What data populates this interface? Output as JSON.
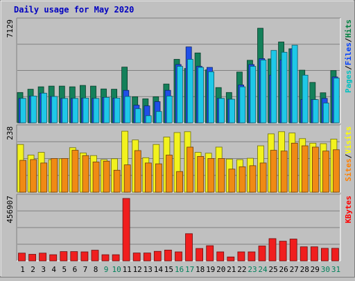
{
  "chart_data": {
    "type": "bar",
    "title": "Daily usage for May 2020",
    "categories": [
      "1",
      "2",
      "3",
      "4",
      "5",
      "6",
      "7",
      "8",
      "9",
      "10",
      "11",
      "12",
      "13",
      "14",
      "15",
      "16",
      "17",
      "18",
      "19",
      "20",
      "21",
      "22",
      "23",
      "24",
      "25",
      "26",
      "27",
      "28",
      "29",
      "30",
      "31"
    ],
    "weekend_days": [
      "9",
      "10",
      "16",
      "17",
      "23",
      "24",
      "30",
      "31"
    ],
    "panels": [
      {
        "id": "hits",
        "ymax_label": "7129",
        "ymax": 7129,
        "grid": true,
        "legend": [
          {
            "name": "Pages",
            "color": "#00c0c0"
          },
          {
            "name": "Files",
            "color": "#0040ff"
          },
          {
            "name": "Hits",
            "color": "#008040"
          }
        ],
        "series": [
          {
            "name": "Hits",
            "color": "#14805a",
            "values": [
              2150,
              2380,
              2550,
              2600,
              2600,
              2550,
              2650,
              2600,
              2400,
              2380,
              3950,
              1850,
              1700,
              1850,
              2750,
              4500,
              3850,
              4950,
              3750,
              2500,
              2150,
              3600,
              4430,
              6700,
              4530,
              5730,
              5250,
              3730,
              2860,
              2130,
              3700
            ]
          },
          {
            "name": "Files",
            "color": "#1f4fe8",
            "values": [
              1730,
              1900,
              2100,
              1870,
              1730,
              1730,
              1750,
              1730,
              1800,
              1750,
              2300,
              1250,
              1200,
              1500,
              2300,
              4130,
              5380,
              4000,
              3930,
              1730,
              1670,
              2680,
              4130,
              4550,
              3380,
              4450,
              5230,
              1650,
              1650,
              1730,
              3250
            ]
          },
          {
            "name": "Pages",
            "color": "#1ec8e8",
            "values": [
              1730,
              1900,
              2100,
              1870,
              1730,
              1730,
              1750,
              1730,
              1800,
              1750,
              1870,
              1000,
              500,
              800,
              1900,
              4000,
              4500,
              3930,
              3620,
              1730,
              1670,
              2550,
              4000,
              4450,
              5130,
              5000,
              5500,
              3380,
              1640,
              1400,
              3170
            ]
          }
        ]
      },
      {
        "id": "visits",
        "ymax_label": "238",
        "ymax": 238,
        "grid": true,
        "legend": [
          {
            "name": "Sites",
            "color": "#ff8000"
          },
          {
            "name": "Visits",
            "color": "#ffff00"
          }
        ],
        "series": [
          {
            "name": "Visits",
            "color": "#f2f21e",
            "values": [
              180,
              140,
              150,
              123,
              126,
              168,
              148,
              138,
              123,
              126,
              230,
              197,
              130,
              180,
              208,
              225,
              228,
              150,
              147,
              170,
              125,
              123,
              128,
              175,
              220,
              228,
              223,
              202,
              185,
              183,
              200
            ]
          },
          {
            "name": "Sites",
            "color": "#f08a14",
            "values": [
              120,
              123,
              110,
              127,
              127,
              158,
              138,
              114,
              117,
              83,
              103,
              157,
              110,
              107,
              140,
              78,
              170,
              135,
              127,
              127,
              87,
              96,
              100,
              110,
              158,
              155,
              185,
              175,
              170,
              155,
              160
            ]
          }
        ]
      },
      {
        "id": "kbytes",
        "ymax_label": "456907",
        "ymax": 456907,
        "grid": true,
        "legend": [
          {
            "name": "KBytes",
            "color": "#ff0000"
          }
        ],
        "series": [
          {
            "name": "KBytes",
            "color": "#f01e1e",
            "values": [
              57000,
              48000,
              57000,
              45000,
              68000,
              68000,
              66000,
              78000,
              45000,
              45000,
              456907,
              58000,
              58000,
              70000,
              79000,
              66000,
              199000,
              91000,
              111000,
              66000,
              29000,
              66000,
              66000,
              109000,
              163000,
              144000,
              160000,
              103000,
              103000,
              92000,
              92000
            ]
          }
        ]
      }
    ]
  }
}
